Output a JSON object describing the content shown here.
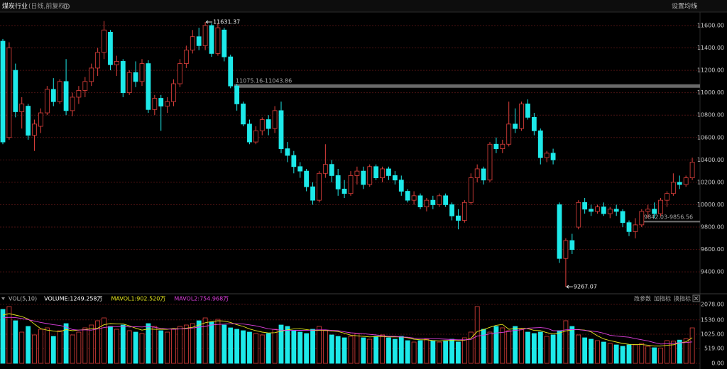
{
  "header": {
    "title": "煤炭行业",
    "subtitle": "(日线,前复权)",
    "ma_setting": "设置均线"
  },
  "chart_data": [
    {
      "type": "candlestick",
      "up_color": "#e0403c",
      "down_color": "#1de9e9",
      "ylim": [
        9230,
        11720
      ],
      "yticks": [
        {
          "value": 9400,
          "label": "9400.00"
        },
        {
          "value": 9600,
          "label": "9600.00"
        },
        {
          "value": 9800,
          "label": "9800.00"
        },
        {
          "value": 10000,
          "label": "10000.00"
        },
        {
          "value": 10200,
          "label": "10200.00"
        },
        {
          "value": 10400,
          "label": "10400.00"
        },
        {
          "value": 10600,
          "label": "10600.00"
        },
        {
          "value": 10800,
          "label": "10800.00"
        },
        {
          "value": 11000,
          "label": "11000.00"
        },
        {
          "value": 11200,
          "label": "11200.00"
        },
        {
          "value": 11400,
          "label": "11400.00"
        },
        {
          "value": 11600,
          "label": "11600.00"
        }
      ],
      "grid": true,
      "max_label": 11631.37,
      "min_label": 9267.07,
      "bands": [
        {
          "range": [
            11043.86,
            11075.16
          ],
          "label": "11075.16-11043.86"
        },
        {
          "range": [
            9842.03,
            9856.56
          ],
          "label": "9842.03-9856.56"
        }
      ],
      "ohlc": [
        [
          11460,
          11480,
          10540,
          10560
        ],
        [
          10600,
          11450,
          10580,
          11400
        ],
        [
          11200,
          11260,
          10780,
          10830
        ],
        [
          10830,
          10960,
          10680,
          10900
        ],
        [
          10880,
          10900,
          10580,
          10620
        ],
        [
          10620,
          10760,
          10480,
          10720
        ],
        [
          10700,
          10860,
          10640,
          10820
        ],
        [
          10820,
          11060,
          10800,
          11030
        ],
        [
          11030,
          11130,
          10880,
          10920
        ],
        [
          10920,
          11120,
          10900,
          11100
        ],
        [
          11100,
          11300,
          10800,
          10840
        ],
        [
          10840,
          11000,
          10790,
          10960
        ],
        [
          10960,
          11060,
          10900,
          11020
        ],
        [
          11020,
          11140,
          10960,
          11100
        ],
        [
          11100,
          11260,
          11060,
          11220
        ],
        [
          11220,
          11400,
          11150,
          11360
        ],
        [
          11360,
          11640,
          11300,
          11560
        ],
        [
          11540,
          11560,
          11200,
          11250
        ],
        [
          11250,
          11330,
          11150,
          11280
        ],
        [
          11280,
          11300,
          10960,
          11000
        ],
        [
          11000,
          11200,
          10980,
          11180
        ],
        [
          11180,
          11280,
          11050,
          11100
        ],
        [
          11100,
          11300,
          11060,
          11260
        ],
        [
          11260,
          11290,
          10820,
          10850
        ],
        [
          10850,
          10980,
          10800,
          10950
        ],
        [
          10950,
          10980,
          10660,
          10880
        ],
        [
          10880,
          10960,
          10820,
          10920
        ],
        [
          10920,
          11120,
          10880,
          11080
        ],
        [
          11080,
          11300,
          11050,
          11260
        ],
        [
          11260,
          11420,
          11220,
          11380
        ],
        [
          11380,
          11560,
          11350,
          11500
        ],
        [
          11500,
          11580,
          11380,
          11420
        ],
        [
          11420,
          11631.37,
          11380,
          11600
        ],
        [
          11600,
          11620,
          11320,
          11350
        ],
        [
          11350,
          11620,
          11330,
          11580
        ],
        [
          11560,
          11580,
          11280,
          11320
        ],
        [
          11320,
          11340,
          11040,
          11060
        ],
        [
          11060,
          11080,
          10840,
          10900
        ],
        [
          10900,
          10920,
          10700,
          10720
        ],
        [
          10720,
          10760,
          10540,
          10560
        ],
        [
          10560,
          10700,
          10540,
          10660
        ],
        [
          10660,
          10780,
          10620,
          10760
        ],
        [
          10760,
          10800,
          10620,
          10680
        ],
        [
          10680,
          10880,
          10640,
          10840
        ],
        [
          10840,
          10920,
          10460,
          10500
        ],
        [
          10500,
          10560,
          10380,
          10440
        ],
        [
          10440,
          10480,
          10280,
          10340
        ],
        [
          10340,
          10380,
          10240,
          10300
        ],
        [
          10300,
          10320,
          10120,
          10160
        ],
        [
          10160,
          10200,
          10000,
          10040
        ],
        [
          10040,
          10300,
          10020,
          10280
        ],
        [
          10280,
          10540,
          10240,
          10360
        ],
        [
          10360,
          10400,
          10200,
          10260
        ],
        [
          10260,
          10320,
          10080,
          10140
        ],
        [
          10140,
          10220,
          10060,
          10100
        ],
        [
          10100,
          10300,
          10080,
          10260
        ],
        [
          10260,
          10340,
          10180,
          10300
        ],
        [
          10300,
          10340,
          10140,
          10180
        ],
        [
          10180,
          10360,
          10160,
          10340
        ],
        [
          10340,
          10360,
          10220,
          10240
        ],
        [
          10240,
          10340,
          10200,
          10320
        ],
        [
          10320,
          10340,
          10220,
          10260
        ],
        [
          10260,
          10300,
          10180,
          10220
        ],
        [
          10220,
          10260,
          10080,
          10120
        ],
        [
          10120,
          10140,
          10020,
          10040
        ],
        [
          10040,
          10120,
          10000,
          10080
        ],
        [
          10080,
          10100,
          9960,
          9980
        ],
        [
          9980,
          10060,
          9940,
          10040
        ],
        [
          10040,
          10080,
          9960,
          10000
        ],
        [
          10000,
          10100,
          9980,
          10080
        ],
        [
          10080,
          10100,
          9980,
          10000
        ],
        [
          10000,
          10020,
          9860,
          9900
        ],
        [
          9900,
          9960,
          9780,
          9860
        ],
        [
          9860,
          10040,
          9840,
          10020
        ],
        [
          10020,
          10280,
          10000,
          10240
        ],
        [
          10240,
          10360,
          10200,
          10320
        ],
        [
          10320,
          10340,
          10180,
          10220
        ],
        [
          10220,
          10560,
          10200,
          10540
        ],
        [
          10540,
          10600,
          10460,
          10500
        ],
        [
          10500,
          10580,
          10460,
          10540
        ],
        [
          10540,
          10920,
          10520,
          10720
        ],
        [
          10720,
          10860,
          10640,
          10680
        ],
        [
          10680,
          10920,
          10660,
          10900
        ],
        [
          10900,
          10940,
          10760,
          10780
        ],
        [
          10780,
          10820,
          10620,
          10660
        ],
        [
          10660,
          10680,
          10360,
          10420
        ],
        [
          10420,
          10480,
          10380,
          10460
        ],
        [
          10460,
          10500,
          10360,
          10400
        ],
        [
          10000,
          10020,
          9480,
          9520
        ],
        [
          9520,
          9700,
          9267.07,
          9680
        ],
        [
          9680,
          9740,
          9560,
          9600
        ],
        [
          9800,
          10040,
          9780,
          10020
        ],
        [
          10020,
          10060,
          9920,
          9960
        ],
        [
          9960,
          10000,
          9900,
          9940
        ],
        [
          9940,
          10000,
          9920,
          9980
        ],
        [
          9980,
          10020,
          9900,
          9920
        ],
        [
          9920,
          9980,
          9880,
          9960
        ],
        [
          9960,
          10000,
          9900,
          9940
        ],
        [
          9940,
          9960,
          9800,
          9840
        ],
        [
          9840,
          9860,
          9720,
          9760
        ],
        [
          9760,
          9880,
          9700,
          9820
        ],
        [
          9820,
          9960,
          9800,
          9940
        ],
        [
          9940,
          10000,
          9880,
          9960
        ],
        [
          9960,
          10020,
          9880,
          9920
        ],
        [
          9920,
          10060,
          9900,
          10040
        ],
        [
          10040,
          10120,
          9980,
          10100
        ],
        [
          10100,
          10280,
          10080,
          10200
        ],
        [
          10200,
          10260,
          10140,
          10180
        ],
        [
          10180,
          10260,
          10160,
          10240
        ],
        [
          10240,
          10420,
          10220,
          10380
        ]
      ]
    },
    {
      "type": "volume",
      "legend_title": "VOL(5,10)",
      "ylim": [
        0,
        2200
      ],
      "yticks": [
        {
          "value": 0,
          "label": "0.00"
        },
        {
          "value": 519,
          "label": "519.00"
        },
        {
          "value": 1025,
          "label": "1025.00"
        },
        {
          "value": 1530,
          "label": "1530.00"
        },
        {
          "value": 2078,
          "label": "2078.00"
        }
      ],
      "grid": true,
      "buttons": [
        "改参数",
        "加指标",
        "换指标"
      ],
      "series": [
        {
          "name": "VOLUME:1249.258万",
          "color": "#ffffff",
          "values": [
            1900,
            2000,
            1500,
            1100,
            1300,
            1000,
            1200,
            1250,
            950,
            1150,
            1400,
            1000,
            1100,
            1250,
            1350,
            1500,
            1600,
            1300,
            1200,
            1350,
            1150,
            1100,
            1050,
            1400,
            1300,
            1150,
            1100,
            1200,
            1300,
            1350,
            1400,
            1500,
            1600,
            1450,
            1550,
            1350,
            1250,
            1200,
            1150,
            1100,
            1050,
            1000,
            1050,
            1200,
            1350,
            1300,
            1150,
            1100,
            1050,
            1200,
            1300,
            1150,
            1000,
            950,
            900,
            950,
            1050,
            900,
            850,
            950,
            1000,
            900,
            850,
            950,
            800,
            750,
            800,
            850,
            800,
            750,
            800,
            850,
            750,
            900,
            1100,
            2000,
            1200,
            1100,
            1300,
            1250,
            1150,
            1300,
            1200,
            1100,
            1050,
            1100,
            950,
            1000,
            1150,
            1500,
            1300,
            1000,
            900,
            850,
            800,
            750,
            700,
            650,
            600,
            650,
            650,
            700,
            600,
            550,
            537,
            800,
            780,
            820,
            863.342,
            1249.258
          ]
        },
        {
          "name": "MAVOL1:902.520万",
          "color": "#e6e61e",
          "values": [
            1700,
            1750,
            1700,
            1650,
            1560,
            1380,
            1220,
            1170,
            1140,
            1110,
            1190,
            1150,
            1170,
            1190,
            1220,
            1240,
            1360,
            1400,
            1390,
            1390,
            1320,
            1240,
            1170,
            1210,
            1200,
            1200,
            1200,
            1230,
            1210,
            1240,
            1270,
            1350,
            1430,
            1470,
            1500,
            1490,
            1440,
            1360,
            1300,
            1210,
            1150,
            1100,
            1070,
            1080,
            1130,
            1180,
            1210,
            1220,
            1190,
            1160,
            1160,
            1160,
            1140,
            1120,
            1060,
            990,
            970,
            950,
            930,
            940,
            950,
            930,
            930,
            930,
            900,
            850,
            830,
            830,
            800,
            790,
            800,
            810,
            800,
            810,
            880,
            1120,
            1190,
            1270,
            1340,
            1370,
            1200,
            1220,
            1240,
            1220,
            1160,
            1150,
            1080,
            1040,
            1070,
            1140,
            1180,
            1190,
            1170,
            1110,
            970,
            860,
            800,
            750,
            700,
            670,
            660,
            660,
            640,
            607,
            607,
            637,
            653,
            717,
            757,
            902.52
          ]
        },
        {
          "name": "MAVOL2:754.968万",
          "color": "#e040e0",
          "values": [
            1600,
            1620,
            1610,
            1580,
            1540,
            1490,
            1440,
            1400,
            1360,
            1335,
            1285,
            1190,
            1170,
            1180,
            1170,
            1210,
            1260,
            1285,
            1290,
            1305,
            1280,
            1290,
            1280,
            1300,
            1270,
            1230,
            1210,
            1200,
            1210,
            1220,
            1245,
            1275,
            1300,
            1350,
            1370,
            1380,
            1395,
            1395,
            1385,
            1355,
            1320,
            1270,
            1215,
            1190,
            1170,
            1160,
            1160,
            1165,
            1160,
            1170,
            1180,
            1180,
            1160,
            1150,
            1110,
            1075,
            1060,
            1045,
            1020,
            1000,
            970,
            950,
            950,
            930,
            920,
            890,
            880,
            870,
            860,
            860,
            850,
            840,
            830,
            830,
            840,
            960,
            990,
            1040,
            1070,
            1090,
            1125,
            1165,
            1180,
            1240,
            1250,
            1260,
            1240,
            1150,
            1145,
            1180,
            1190,
            1185,
            1160,
            1140,
            1110,
            1060,
            990,
            960,
            940,
            920,
            870,
            830,
            790,
            730,
            680,
            690,
            706,
            722,
            732,
            754.968
          ]
        }
      ]
    }
  ]
}
